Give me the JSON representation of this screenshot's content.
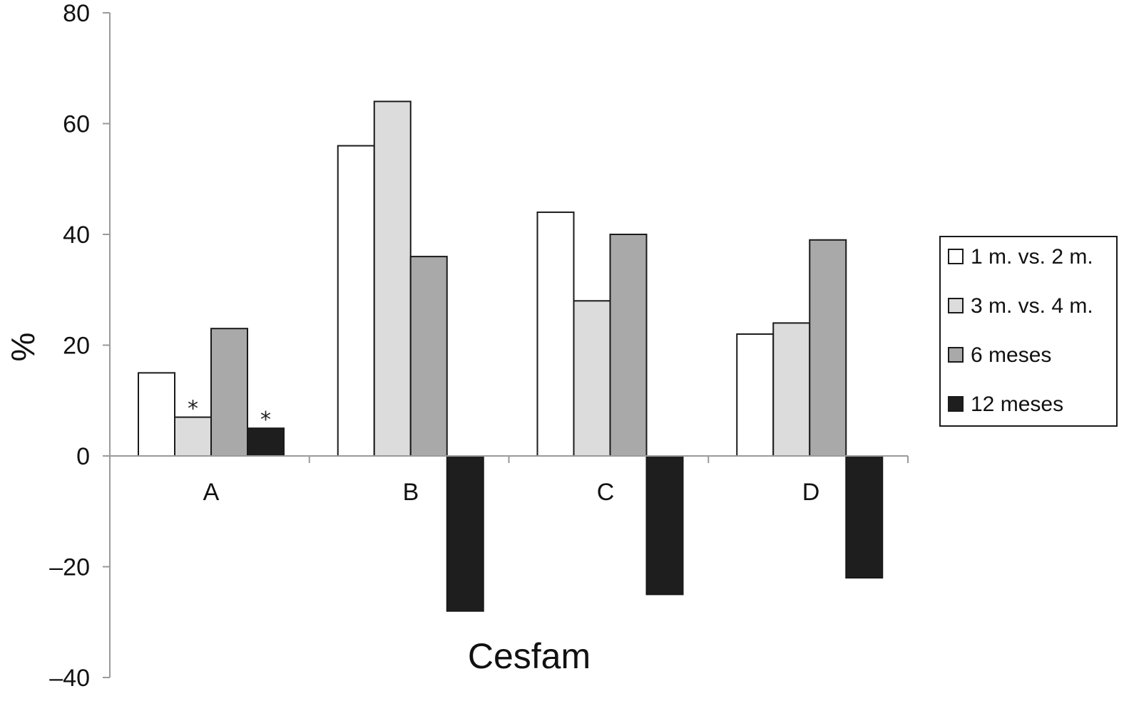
{
  "chart_data": {
    "type": "bar",
    "categories": [
      "A",
      "B",
      "C",
      "D"
    ],
    "series": [
      {
        "name": "1 m. vs. 2 m.",
        "color": "#ffffff",
        "values": [
          15,
          56,
          44,
          22
        ]
      },
      {
        "name": "3 m. vs. 4 m.",
        "color": "#dcdcdc",
        "values": [
          7,
          64,
          28,
          24
        ]
      },
      {
        "name": "6 meses",
        "color": "#a9a9a9",
        "values": [
          23,
          36,
          40,
          39
        ]
      },
      {
        "name": "12 meses",
        "color": "#1e1e1e",
        "values": [
          5,
          -28,
          -25,
          -22
        ]
      }
    ],
    "annotations": [
      {
        "category": "A",
        "series": "3 m. vs. 4 m.",
        "text": "*"
      },
      {
        "category": "A",
        "series": "12 meses",
        "text": "*"
      }
    ],
    "xlabel": "Cesfam",
    "ylabel": "%",
    "ylim": [
      -40,
      80
    ],
    "yticks": [
      80,
      60,
      40,
      20,
      0,
      -20,
      -40
    ],
    "ytick_labels": [
      "80",
      "60",
      "40",
      "20",
      "0",
      "–20",
      "–40"
    ],
    "grid": false,
    "legend_position": "right"
  }
}
